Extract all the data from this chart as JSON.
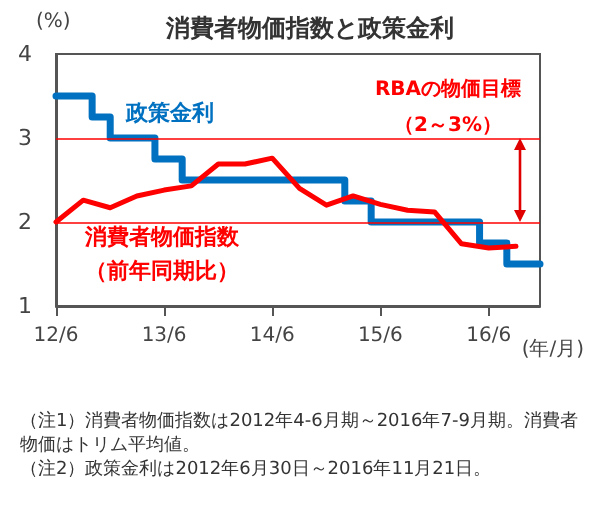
{
  "chart_data": {
    "type": "line",
    "title": "消費者物価指数と政策金利",
    "ylabel": "(%)",
    "xlabel": "(年/月)",
    "xlim": [
      "2012-06",
      "2016-11-21"
    ],
    "xticks": [
      {
        "value": "2012-06",
        "label": "12/6"
      },
      {
        "value": "2013-06",
        "label": "13/6"
      },
      {
        "value": "2014-06",
        "label": "14/6"
      },
      {
        "value": "2015-06",
        "label": "15/6"
      },
      {
        "value": "2016-06",
        "label": "16/6"
      }
    ],
    "ylim": [
      1,
      4
    ],
    "yticks": [
      1,
      2,
      3,
      4
    ],
    "grid": false,
    "legend": false,
    "marker": "none",
    "line_style": "solid",
    "series": [
      {
        "name": "政策金利",
        "type": "step",
        "color": "#0070c0",
        "x": [
          "2012-06",
          "2012-10",
          "2012-12",
          "2013-05",
          "2013-08",
          "2015-02",
          "2015-05",
          "2016-05",
          "2016-08",
          "2016-11-21"
        ],
        "values": [
          3.5,
          3.25,
          3.0,
          2.75,
          2.5,
          2.25,
          2.0,
          1.75,
          1.5,
          1.5
        ]
      },
      {
        "name": "消費者物価指数（前年同期比）",
        "type": "line",
        "color": "#ff0000",
        "x": [
          "2012-06",
          "2012-09",
          "2012-12",
          "2013-03",
          "2013-06",
          "2013-09",
          "2013-12",
          "2014-03",
          "2014-06",
          "2014-09",
          "2014-12",
          "2015-03",
          "2015-06",
          "2015-09",
          "2015-12",
          "2016-03",
          "2016-06",
          "2016-09"
        ],
        "values": [
          2.0,
          2.26,
          2.17,
          2.31,
          2.38,
          2.43,
          2.69,
          2.69,
          2.76,
          2.4,
          2.2,
          2.31,
          2.21,
          2.14,
          2.12,
          1.74,
          1.69,
          1.71
        ]
      }
    ],
    "ref_lines": [
      {
        "axis": "y",
        "value": 2,
        "color": "#ff0000"
      },
      {
        "axis": "y",
        "value": 3,
        "color": "#ff0000"
      }
    ],
    "annotations": [
      "RBAの物価目標（2～3%）",
      "（注1）消費者物価指数は2012年4-6月期～2016年7-9月期。消費者物価はトリム平均値。",
      "（注2）政策金利は2012年6月30日～2016年11月21日。"
    ]
  }
}
